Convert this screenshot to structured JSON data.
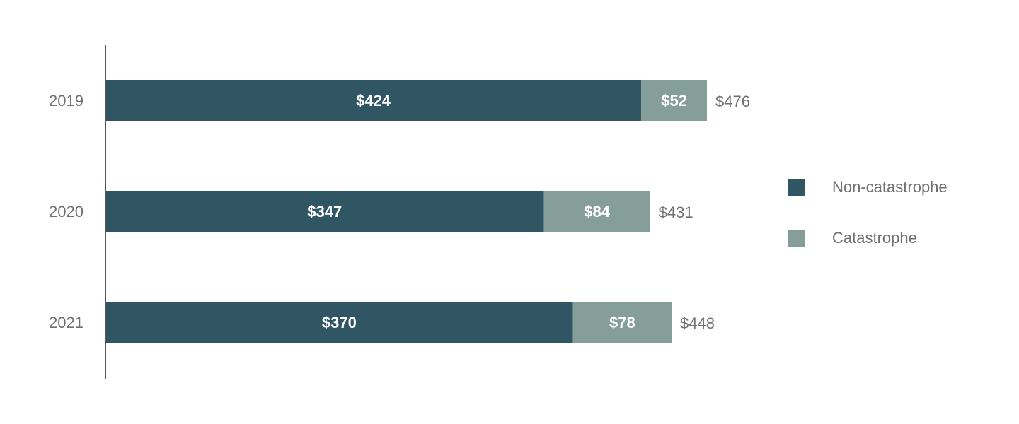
{
  "chart_data": {
    "type": "bar",
    "orientation": "horizontal",
    "stacked": true,
    "categories": [
      "2019",
      "2020",
      "2021"
    ],
    "series": [
      {
        "name": "Non-catastrophe",
        "values": [
          424,
          347,
          370
        ],
        "labels": [
          "$424",
          "$347",
          "$370"
        ],
        "color": "#305664"
      },
      {
        "name": "Catastrophe",
        "values": [
          52,
          84,
          78
        ],
        "labels": [
          "$52",
          "$84",
          "$78"
        ],
        "color": "#869e99"
      }
    ],
    "totals": [
      476,
      431,
      448
    ],
    "total_labels": [
      "$476",
      "$431",
      "$448"
    ],
    "xlim": [
      0,
      476
    ],
    "grid": false,
    "legend_position": "right",
    "colors": {
      "category_text": "#6f6f6f",
      "total_text": "#6f6f6f",
      "segment_text": "#ffffff",
      "axis": "#555555"
    }
  }
}
